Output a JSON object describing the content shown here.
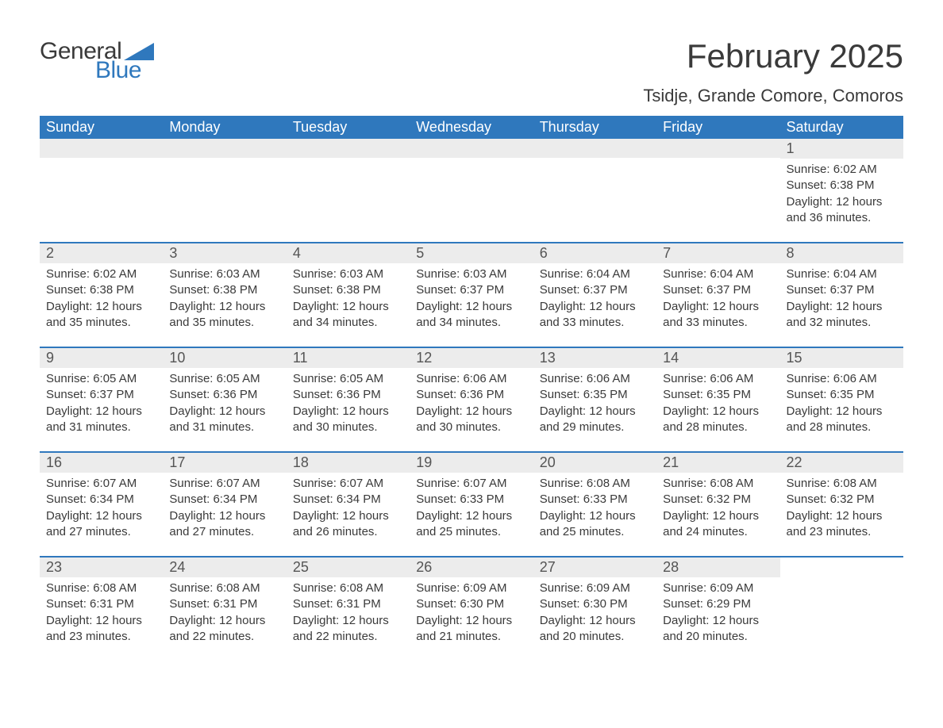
{
  "brand": {
    "word1": "General",
    "word2": "Blue",
    "accent_color": "#2f78bd"
  },
  "title": "February 2025",
  "location": "Tsidje, Grande Comore, Comoros",
  "weekdays": [
    "Sunday",
    "Monday",
    "Tuesday",
    "Wednesday",
    "Thursday",
    "Friday",
    "Saturday"
  ],
  "colors": {
    "header_bg": "#2f78bd",
    "header_text": "#ffffff",
    "daynum_bg": "#ececec",
    "text": "#3a3a3a",
    "row_border": "#2f78bd",
    "page_bg": "#ffffff"
  },
  "layout": {
    "first_weekday_index": 6,
    "rows": 5,
    "cols": 7
  },
  "days": [
    {
      "n": 1,
      "sunrise": "6:02 AM",
      "sunset": "6:38 PM",
      "daylight": "12 hours and 36 minutes."
    },
    {
      "n": 2,
      "sunrise": "6:02 AM",
      "sunset": "6:38 PM",
      "daylight": "12 hours and 35 minutes."
    },
    {
      "n": 3,
      "sunrise": "6:03 AM",
      "sunset": "6:38 PM",
      "daylight": "12 hours and 35 minutes."
    },
    {
      "n": 4,
      "sunrise": "6:03 AM",
      "sunset": "6:38 PM",
      "daylight": "12 hours and 34 minutes."
    },
    {
      "n": 5,
      "sunrise": "6:03 AM",
      "sunset": "6:37 PM",
      "daylight": "12 hours and 34 minutes."
    },
    {
      "n": 6,
      "sunrise": "6:04 AM",
      "sunset": "6:37 PM",
      "daylight": "12 hours and 33 minutes."
    },
    {
      "n": 7,
      "sunrise": "6:04 AM",
      "sunset": "6:37 PM",
      "daylight": "12 hours and 33 minutes."
    },
    {
      "n": 8,
      "sunrise": "6:04 AM",
      "sunset": "6:37 PM",
      "daylight": "12 hours and 32 minutes."
    },
    {
      "n": 9,
      "sunrise": "6:05 AM",
      "sunset": "6:37 PM",
      "daylight": "12 hours and 31 minutes."
    },
    {
      "n": 10,
      "sunrise": "6:05 AM",
      "sunset": "6:36 PM",
      "daylight": "12 hours and 31 minutes."
    },
    {
      "n": 11,
      "sunrise": "6:05 AM",
      "sunset": "6:36 PM",
      "daylight": "12 hours and 30 minutes."
    },
    {
      "n": 12,
      "sunrise": "6:06 AM",
      "sunset": "6:36 PM",
      "daylight": "12 hours and 30 minutes."
    },
    {
      "n": 13,
      "sunrise": "6:06 AM",
      "sunset": "6:35 PM",
      "daylight": "12 hours and 29 minutes."
    },
    {
      "n": 14,
      "sunrise": "6:06 AM",
      "sunset": "6:35 PM",
      "daylight": "12 hours and 28 minutes."
    },
    {
      "n": 15,
      "sunrise": "6:06 AM",
      "sunset": "6:35 PM",
      "daylight": "12 hours and 28 minutes."
    },
    {
      "n": 16,
      "sunrise": "6:07 AM",
      "sunset": "6:34 PM",
      "daylight": "12 hours and 27 minutes."
    },
    {
      "n": 17,
      "sunrise": "6:07 AM",
      "sunset": "6:34 PM",
      "daylight": "12 hours and 27 minutes."
    },
    {
      "n": 18,
      "sunrise": "6:07 AM",
      "sunset": "6:34 PM",
      "daylight": "12 hours and 26 minutes."
    },
    {
      "n": 19,
      "sunrise": "6:07 AM",
      "sunset": "6:33 PM",
      "daylight": "12 hours and 25 minutes."
    },
    {
      "n": 20,
      "sunrise": "6:08 AM",
      "sunset": "6:33 PM",
      "daylight": "12 hours and 25 minutes."
    },
    {
      "n": 21,
      "sunrise": "6:08 AM",
      "sunset": "6:32 PM",
      "daylight": "12 hours and 24 minutes."
    },
    {
      "n": 22,
      "sunrise": "6:08 AM",
      "sunset": "6:32 PM",
      "daylight": "12 hours and 23 minutes."
    },
    {
      "n": 23,
      "sunrise": "6:08 AM",
      "sunset": "6:31 PM",
      "daylight": "12 hours and 23 minutes."
    },
    {
      "n": 24,
      "sunrise": "6:08 AM",
      "sunset": "6:31 PM",
      "daylight": "12 hours and 22 minutes."
    },
    {
      "n": 25,
      "sunrise": "6:08 AM",
      "sunset": "6:31 PM",
      "daylight": "12 hours and 22 minutes."
    },
    {
      "n": 26,
      "sunrise": "6:09 AM",
      "sunset": "6:30 PM",
      "daylight": "12 hours and 21 minutes."
    },
    {
      "n": 27,
      "sunrise": "6:09 AM",
      "sunset": "6:30 PM",
      "daylight": "12 hours and 20 minutes."
    },
    {
      "n": 28,
      "sunrise": "6:09 AM",
      "sunset": "6:29 PM",
      "daylight": "12 hours and 20 minutes."
    }
  ],
  "labels": {
    "sunrise_prefix": "Sunrise: ",
    "sunset_prefix": "Sunset: ",
    "daylight_prefix": "Daylight: "
  }
}
